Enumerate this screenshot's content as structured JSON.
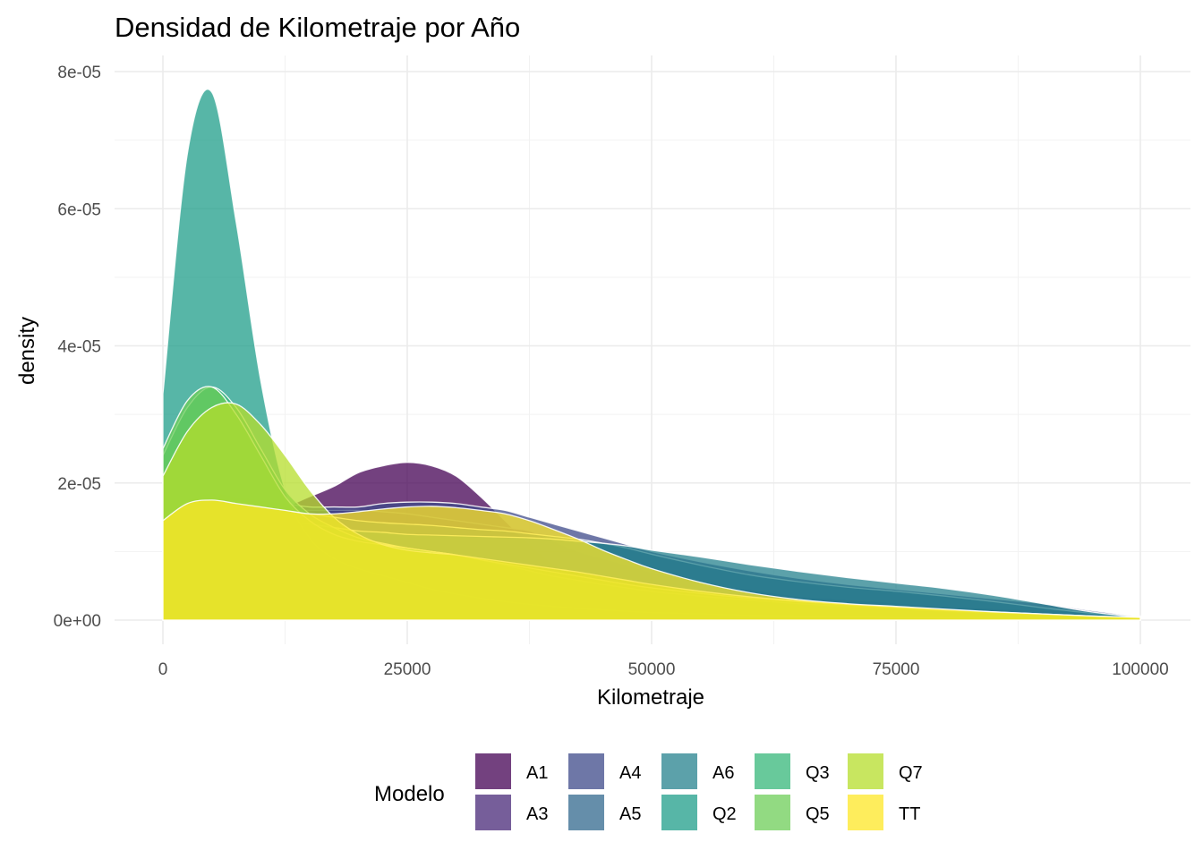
{
  "chart_data": {
    "type": "area",
    "subtype": "density",
    "title": "Densidad de Kilometraje por Año",
    "xlabel": "Kilometraje",
    "ylabel": "density",
    "xlim": [
      0,
      100000
    ],
    "ylim": [
      0,
      8e-05
    ],
    "x_ticks": [
      0,
      25000,
      50000,
      75000,
      100000
    ],
    "x_tick_labels": [
      "0",
      "25000",
      "50000",
      "75000",
      "100000"
    ],
    "y_ticks": [
      0,
      2e-05,
      4e-05,
      6e-05,
      8e-05
    ],
    "y_tick_labels": [
      "0e+00",
      "2e-05",
      "4e-05",
      "6e-05",
      "8e-05"
    ],
    "grid": true,
    "legend": {
      "title": "Modelo",
      "position": "bottom"
    },
    "fill_opacity": 0.75,
    "x": [
      0,
      2500,
      5000,
      7500,
      10000,
      12500,
      15000,
      17500,
      20000,
      22500,
      25000,
      27500,
      30000,
      32500,
      35000,
      37500,
      40000,
      42500,
      45000,
      47500,
      50000,
      55000,
      60000,
      65000,
      70000,
      75000,
      80000,
      85000,
      90000,
      95000,
      100000
    ],
    "series": [
      {
        "name": "A1",
        "color": "#440154",
        "values": [
          1.35e-05,
          1.55e-05,
          1.6e-05,
          1.55e-05,
          1.55e-05,
          1.65e-05,
          1.8e-05,
          1.95e-05,
          2.15e-05,
          2.25e-05,
          2.3e-05,
          2.25e-05,
          2.1e-05,
          1.8e-05,
          1.45e-05,
          1.1e-05,
          8e-06,
          6e-06,
          4.5e-06,
          3.5e-06,
          3e-06,
          2.5e-06,
          2e-06,
          1.8e-06,
          1.6e-06,
          1.4e-06,
          1.2e-06,
          1e-06,
          8e-07,
          6e-07,
          4e-07
        ]
      },
      {
        "name": "A3",
        "color": "#482878",
        "values": [
          1.3e-05,
          1.55e-05,
          1.65e-05,
          1.65e-05,
          1.6e-05,
          1.6e-05,
          1.6e-05,
          1.6e-05,
          1.6e-05,
          1.58e-05,
          1.55e-05,
          1.5e-05,
          1.45e-05,
          1.4e-05,
          1.35e-05,
          1.3e-05,
          1.15e-05,
          1e-05,
          9e-06,
          8e-06,
          7e-06,
          5.5e-06,
          4.5e-06,
          3.5e-06,
          3e-06,
          2.5e-06,
          2e-06,
          1.7e-06,
          1.4e-06,
          1.1e-06,
          6e-07
        ]
      },
      {
        "name": "A4",
        "color": "#3E4A89",
        "values": [
          1.45e-05,
          1.75e-05,
          1.85e-05,
          1.8e-05,
          1.75e-05,
          1.7e-05,
          1.65e-05,
          1.65e-05,
          1.65e-05,
          1.7e-05,
          1.72e-05,
          1.72e-05,
          1.7e-05,
          1.65e-05,
          1.6e-05,
          1.5e-05,
          1.4e-05,
          1.3e-05,
          1.2e-05,
          1.1e-05,
          1e-05,
          8.5e-06,
          7.2e-06,
          6.1e-06,
          5.2e-06,
          4.5e-06,
          3.8e-06,
          3.1e-06,
          2.4e-06,
          1.4e-06,
          5e-07
        ]
      },
      {
        "name": "A5",
        "color": "#31688E",
        "values": [
          1.4e-05,
          1.65e-05,
          1.75e-05,
          1.7e-05,
          1.65e-05,
          1.6e-05,
          1.55e-05,
          1.5e-05,
          1.45e-05,
          1.42e-05,
          1.4e-05,
          1.38e-05,
          1.35e-05,
          1.32e-05,
          1.3e-05,
          1.26e-05,
          1.22e-05,
          1.18e-05,
          1.12e-05,
          1.05e-05,
          9.6e-06,
          8e-06,
          6.6e-06,
          5.6e-06,
          4.8e-06,
          4.2e-06,
          3.5e-06,
          2.7e-06,
          1.8e-06,
          1e-06,
          5e-07
        ]
      },
      {
        "name": "A6",
        "color": "#26828E",
        "values": [
          1.4e-05,
          1.6e-05,
          1.65e-05,
          1.6e-05,
          1.55e-05,
          1.45e-05,
          1.4e-05,
          1.35e-05,
          1.3e-05,
          1.28e-05,
          1.25e-05,
          1.24e-05,
          1.23e-05,
          1.22e-05,
          1.21e-05,
          1.2e-05,
          1.18e-05,
          1.15e-05,
          1.12e-05,
          1.08e-05,
          1.02e-05,
          9.2e-06,
          8.1e-06,
          7.1e-06,
          6.2e-06,
          5.4e-06,
          4.6e-06,
          3.6e-06,
          2.4e-06,
          1.2e-06,
          4e-07
        ]
      },
      {
        "name": "Q2",
        "color": "#1F9E89",
        "values": [
          3.3e-05,
          6.8e-05,
          7.7e-05,
          5.8e-05,
          3.5e-05,
          1.9e-05,
          1.2e-05,
          9e-06,
          7.5e-06,
          6.5e-06,
          5.5e-06,
          4.5e-06,
          3.8e-06,
          3.2e-06,
          2.7e-06,
          2.3e-06,
          2e-06,
          1.7e-06,
          1.5e-06,
          1.3e-06,
          1.1e-06,
          9e-07,
          7e-07,
          6e-07,
          5e-07,
          4e-07,
          3e-07,
          2e-07,
          2e-07,
          1e-07,
          1e-07
        ]
      },
      {
        "name": "Q3",
        "color": "#35B779",
        "values": [
          2.4e-05,
          3.1e-05,
          3.4e-05,
          3.1e-05,
          2.5e-05,
          1.9e-05,
          1.55e-05,
          1.35e-05,
          1.2e-05,
          1.12e-05,
          1.05e-05,
          1e-05,
          9.5e-06,
          8.8e-06,
          8e-06,
          7.2e-06,
          6.4e-06,
          5.8e-06,
          5.2e-06,
          4.7e-06,
          4.2e-06,
          3.5e-06,
          2.9e-06,
          2.4e-06,
          2e-06,
          1.6e-06,
          1.3e-06,
          1e-06,
          7e-07,
          5e-07,
          3e-07
        ]
      },
      {
        "name": "Q5",
        "color": "#6ECE58",
        "values": [
          2.5e-05,
          3.2e-05,
          3.4e-05,
          3e-05,
          2.4e-05,
          1.8e-05,
          1.45e-05,
          1.25e-05,
          1.15e-05,
          1.1e-05,
          1.05e-05,
          1e-05,
          9.5e-06,
          8.8e-06,
          8.2e-06,
          7.6e-06,
          7e-06,
          6.4e-06,
          5.8e-06,
          5.2e-06,
          4.7e-06,
          3.9e-06,
          3.2e-06,
          2.7e-06,
          2.2e-06,
          1.8e-06,
          1.4e-06,
          1.1e-06,
          8e-07,
          5e-07,
          3e-07
        ]
      },
      {
        "name": "Q7",
        "color": "#B5DE2B",
        "values": [
          2.1e-05,
          2.75e-05,
          3.1e-05,
          3.15e-05,
          2.85e-05,
          2.4e-05,
          1.9e-05,
          1.5e-05,
          1.25e-05,
          1.1e-05,
          1.02e-05,
          9.8e-06,
          9.5e-06,
          9e-06,
          8.5e-06,
          8e-06,
          7.5e-06,
          7e-06,
          6.4e-06,
          5.8e-06,
          5.2e-06,
          4.2e-06,
          3.4e-06,
          2.8e-06,
          2.3e-06,
          1.9e-06,
          1.5e-06,
          1.2e-06,
          9e-07,
          6e-07,
          4e-07
        ]
      },
      {
        "name": "TT",
        "color": "#FDE725",
        "values": [
          1.45e-05,
          1.7e-05,
          1.75e-05,
          1.7e-05,
          1.65e-05,
          1.6e-05,
          1.55e-05,
          1.55e-05,
          1.58e-05,
          1.62e-05,
          1.65e-05,
          1.66e-05,
          1.64e-05,
          1.6e-05,
          1.55e-05,
          1.45e-05,
          1.32e-05,
          1.18e-05,
          1.02e-05,
          8.8e-06,
          7.5e-06,
          5.5e-06,
          4e-06,
          3e-06,
          2.4e-06,
          2e-06,
          1.6e-06,
          1.2e-06,
          9e-07,
          6e-07,
          4e-07
        ]
      }
    ]
  }
}
